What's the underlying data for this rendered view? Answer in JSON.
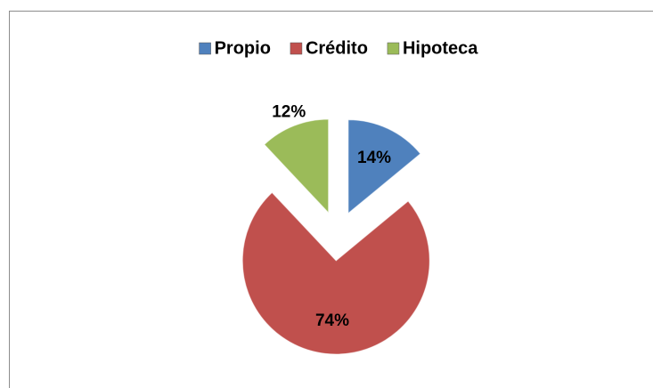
{
  "chart_data": {
    "type": "pie",
    "categories": [
      "Propio",
      "Crédito",
      "Hipoteca"
    ],
    "values": [
      14,
      74,
      12
    ],
    "value_labels": [
      "14%",
      "74%",
      "12%"
    ],
    "colors": [
      "#4f81bd",
      "#c0504d",
      "#9bbb59"
    ],
    "legend": "top",
    "exploded": true
  }
}
